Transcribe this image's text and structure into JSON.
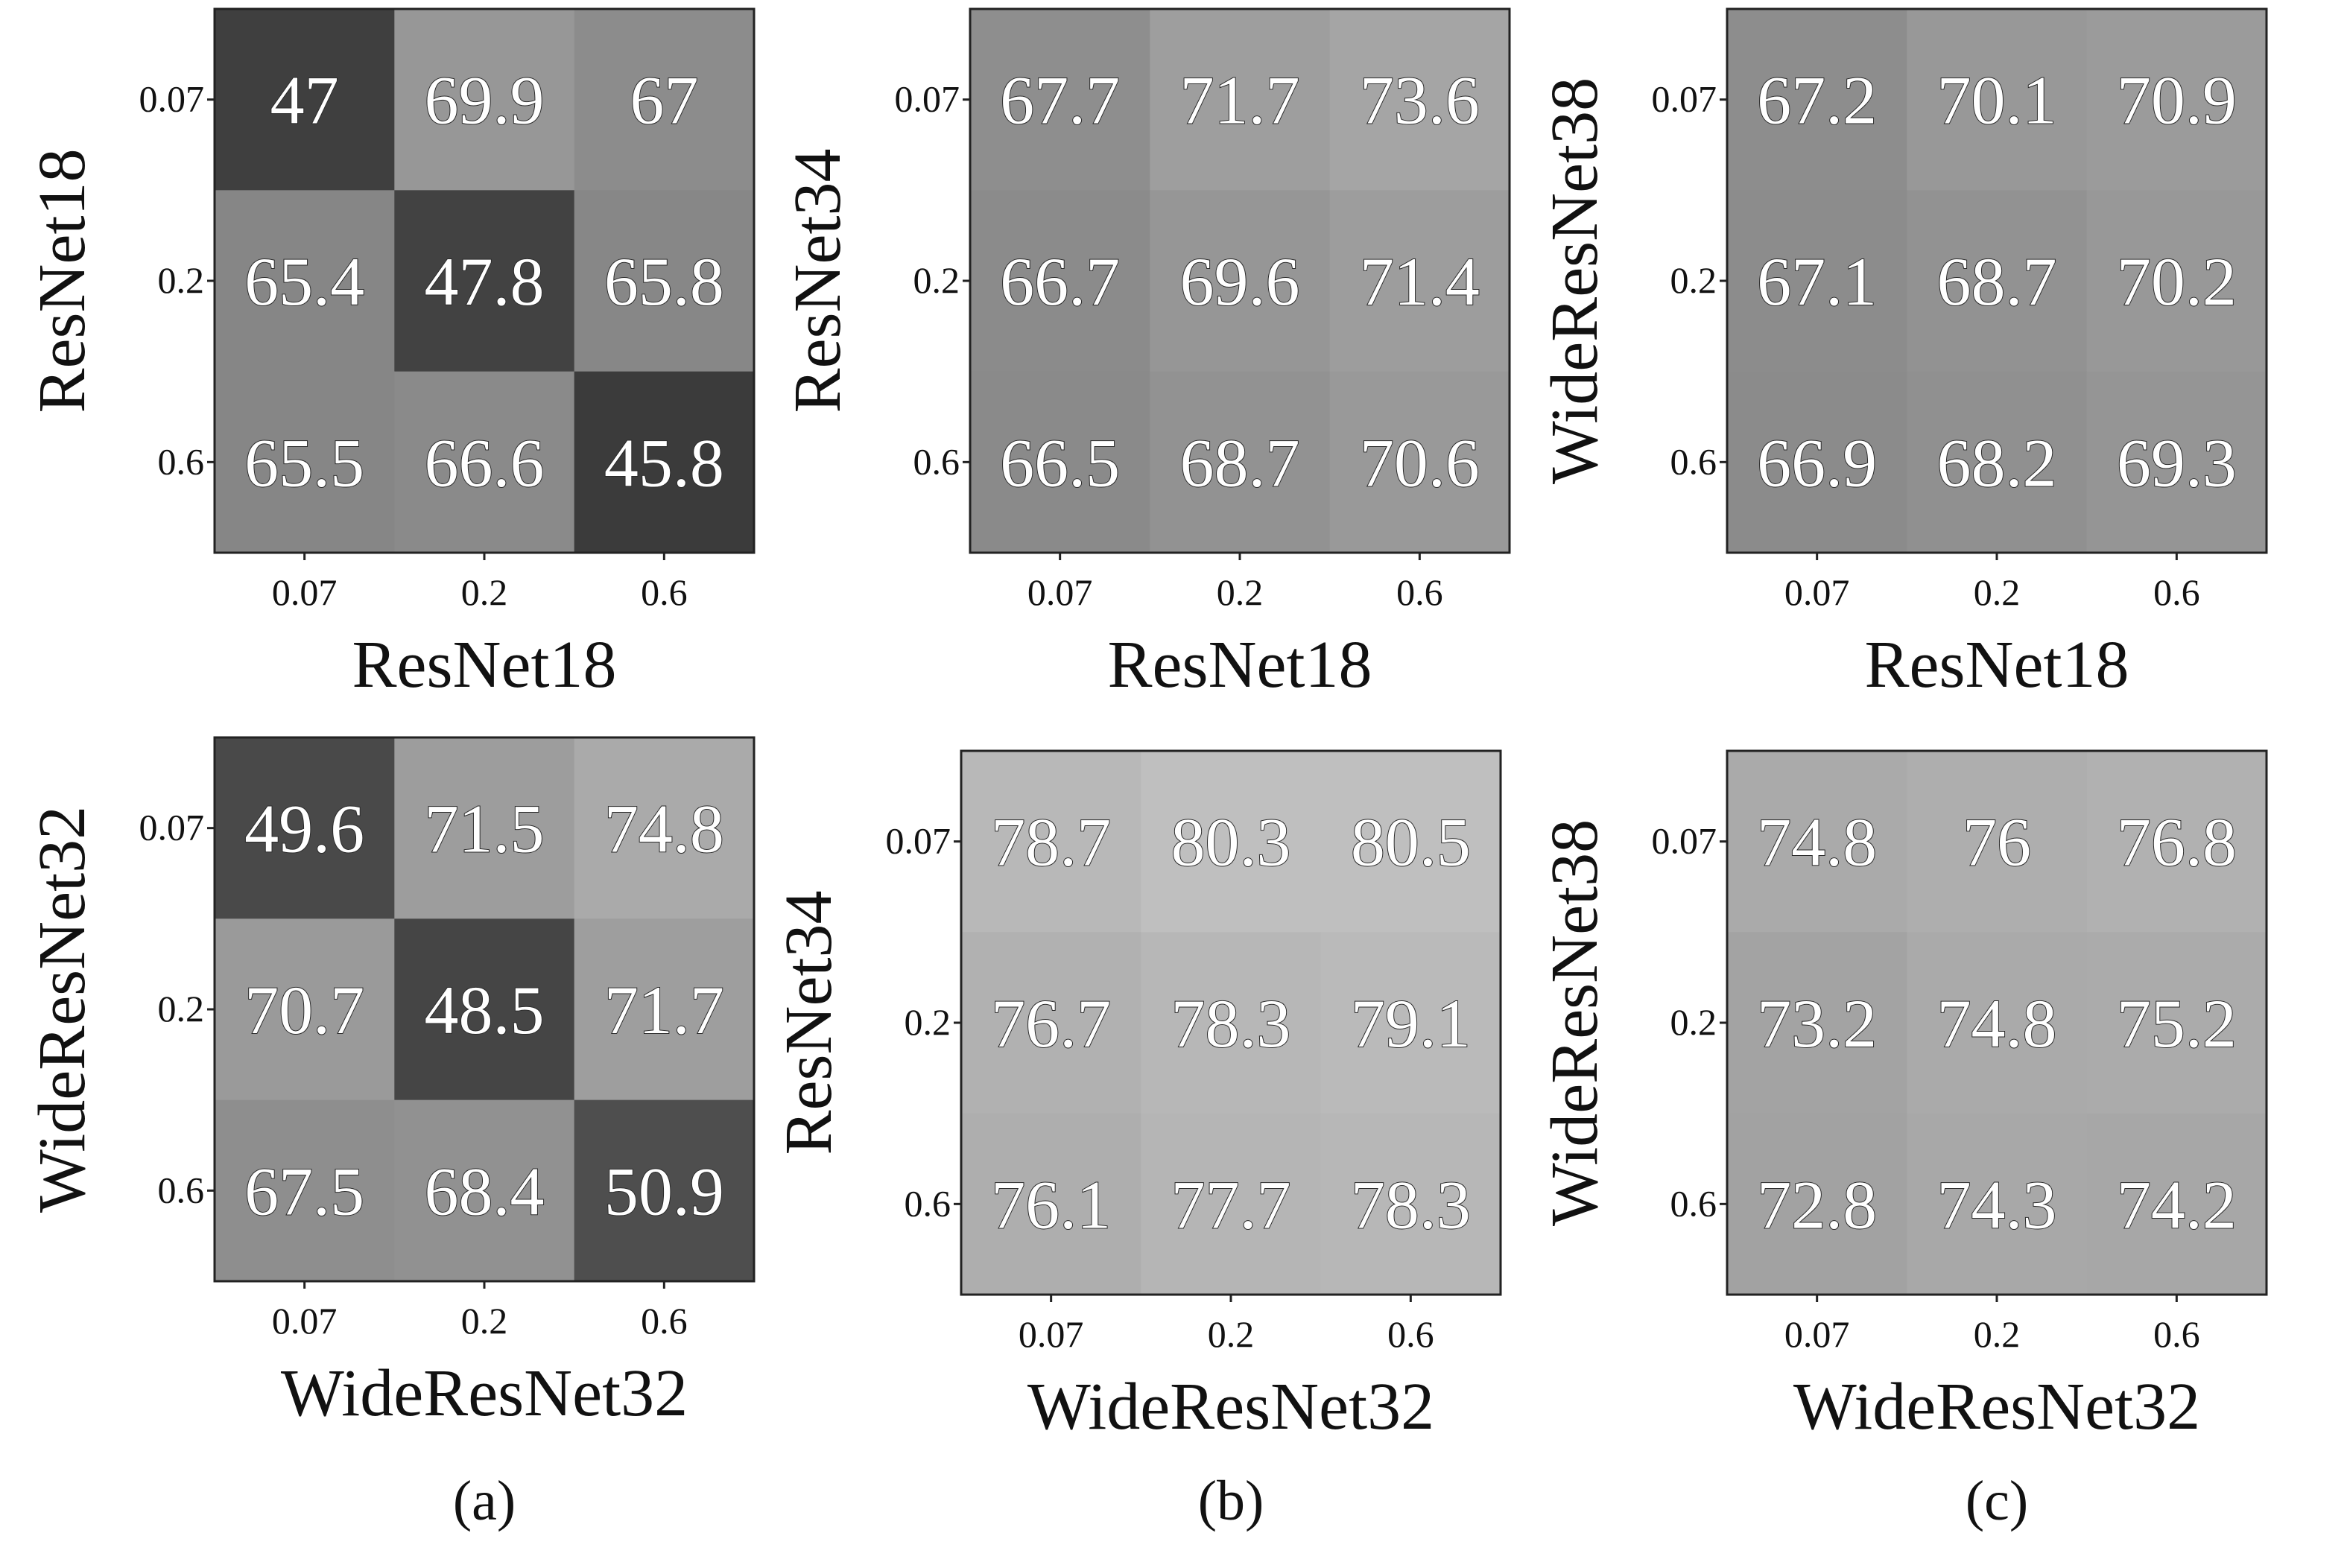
{
  "figure": {
    "captions": [
      "(a)",
      "(b)",
      "(c)"
    ]
  },
  "chart_data": [
    {
      "type": "heatmap",
      "xlabel": "ResNet18",
      "ylabel": "ResNet18",
      "x_ticks": [
        "0.07",
        "0.2",
        "0.6"
      ],
      "y_ticks": [
        "0.07",
        "0.2",
        "0.6"
      ],
      "values": [
        [
          47,
          69.9,
          67
        ],
        [
          65.4,
          47.8,
          65.8
        ],
        [
          65.5,
          66.6,
          45.8
        ]
      ],
      "labels": [
        [
          "47",
          "69.9",
          "67"
        ],
        [
          "65.4",
          "47.8",
          "65.8"
        ],
        [
          "65.5",
          "66.6",
          "45.8"
        ]
      ]
    },
    {
      "type": "heatmap",
      "xlabel": "ResNet18",
      "ylabel": "ResNet34",
      "x_ticks": [
        "0.07",
        "0.2",
        "0.6"
      ],
      "y_ticks": [
        "0.07",
        "0.2",
        "0.6"
      ],
      "values": [
        [
          67.7,
          71.7,
          73.6
        ],
        [
          66.7,
          69.6,
          71.4
        ],
        [
          66.5,
          68.7,
          70.6
        ]
      ],
      "labels": [
        [
          "67.7",
          "71.7",
          "73.6"
        ],
        [
          "66.7",
          "69.6",
          "71.4"
        ],
        [
          "66.5",
          "68.7",
          "70.6"
        ]
      ]
    },
    {
      "type": "heatmap",
      "xlabel": "ResNet18",
      "ylabel": "WideResNet38",
      "x_ticks": [
        "0.07",
        "0.2",
        "0.6"
      ],
      "y_ticks": [
        "0.07",
        "0.2",
        "0.6"
      ],
      "values": [
        [
          67.2,
          70.1,
          70.9
        ],
        [
          67.1,
          68.7,
          70.2
        ],
        [
          66.9,
          68.2,
          69.3
        ]
      ],
      "labels": [
        [
          "67.2",
          "70.1",
          "70.9"
        ],
        [
          "67.1",
          "68.7",
          "70.2"
        ],
        [
          "66.9",
          "68.2",
          "69.3"
        ]
      ]
    },
    {
      "type": "heatmap",
      "xlabel": "WideResNet32",
      "ylabel": "WideResNet32",
      "x_ticks": [
        "0.07",
        "0.2",
        "0.6"
      ],
      "y_ticks": [
        "0.07",
        "0.2",
        "0.6"
      ],
      "values": [
        [
          49.6,
          71.5,
          74.8
        ],
        [
          70.7,
          48.5,
          71.7
        ],
        [
          67.5,
          68.4,
          50.9
        ]
      ],
      "labels": [
        [
          "49.6",
          "71.5",
          "74.8"
        ],
        [
          "70.7",
          "48.5",
          "71.7"
        ],
        [
          "67.5",
          "68.4",
          "50.9"
        ]
      ]
    },
    {
      "type": "heatmap",
      "xlabel": "WideResNet32",
      "ylabel": "ResNet34",
      "x_ticks": [
        "0.07",
        "0.2",
        "0.6"
      ],
      "y_ticks": [
        "0.07",
        "0.2",
        "0.6"
      ],
      "values": [
        [
          78.7,
          80.3,
          80.5
        ],
        [
          76.7,
          78.3,
          79.1
        ],
        [
          76.1,
          77.7,
          78.3
        ]
      ],
      "labels": [
        [
          "78.7",
          "80.3",
          "80.5"
        ],
        [
          "76.7",
          "78.3",
          "79.1"
        ],
        [
          "76.1",
          "77.7",
          "78.3"
        ]
      ]
    },
    {
      "type": "heatmap",
      "xlabel": "WideResNet32",
      "ylabel": "WideResNet38",
      "x_ticks": [
        "0.07",
        "0.2",
        "0.6"
      ],
      "y_ticks": [
        "0.07",
        "0.2",
        "0.6"
      ],
      "values": [
        [
          74.8,
          76,
          76.8
        ],
        [
          73.2,
          74.8,
          75.2
        ],
        [
          72.8,
          74.3,
          74.2
        ]
      ],
      "labels": [
        [
          "74.8",
          "76",
          "76.8"
        ],
        [
          "73.2",
          "74.8",
          "75.2"
        ],
        [
          "72.8",
          "74.3",
          "74.2"
        ]
      ]
    }
  ]
}
